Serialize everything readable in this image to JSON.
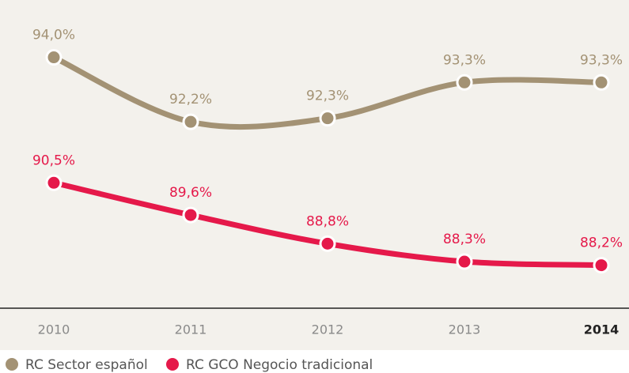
{
  "chart_data": {
    "type": "line",
    "categories": [
      "2010",
      "2011",
      "2012",
      "2013",
      "2014"
    ],
    "series": [
      {
        "name": "RC Sector español",
        "color": "#a39274",
        "values": [
          94.0,
          92.2,
          92.3,
          93.3,
          93.3
        ],
        "value_labels": [
          "94,0%",
          "92,2%",
          "92,3%",
          "93,3%",
          "93,3%"
        ]
      },
      {
        "name": "RC GCO Negocio tradicional",
        "color": "#e5194a",
        "values": [
          90.5,
          89.6,
          88.8,
          88.3,
          88.2
        ],
        "value_labels": [
          "90,5%",
          "89,6%",
          "88,8%",
          "88,3%",
          "88,2%"
        ]
      }
    ],
    "ylim": [
      87,
      95.6
    ]
  }
}
